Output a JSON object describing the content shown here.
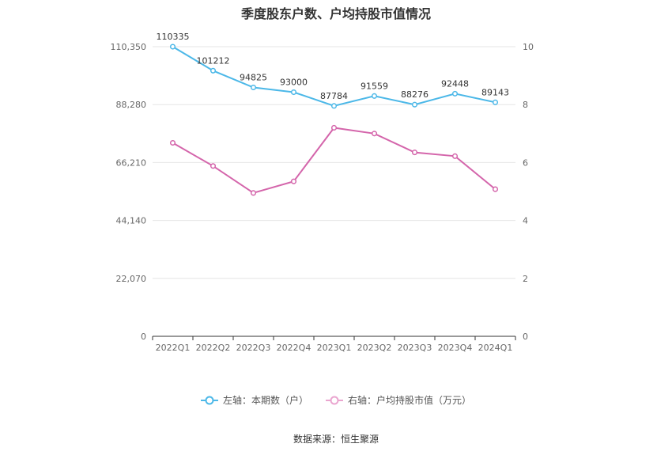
{
  "chart_data": {
    "type": "line",
    "title": "季度股东户数、户均持股市值情况",
    "categories": [
      "2022Q1",
      "2022Q2",
      "2022Q3",
      "2022Q4",
      "2023Q1",
      "2023Q2",
      "2023Q3",
      "2023Q4",
      "2024Q1"
    ],
    "left_axis": {
      "ticks": [
        "0",
        "22,070",
        "44,140",
        "66,210",
        "88,280",
        "110,350"
      ],
      "ylim": [
        0,
        110350
      ]
    },
    "right_axis": {
      "ticks": [
        "0",
        "2",
        "4",
        "6",
        "8",
        "10"
      ],
      "ylim": [
        0,
        10
      ]
    },
    "series": [
      {
        "name": "左轴：本期数（户）",
        "axis": "left",
        "color": "#4cb8e8",
        "values": [
          110335,
          101212,
          94825,
          93000,
          87784,
          91559,
          88276,
          92448,
          89143
        ],
        "labels": [
          "110335",
          "101212",
          "94825",
          "93000",
          "87784",
          "91559",
          "88276",
          "92448",
          "89143"
        ]
      },
      {
        "name": "右轴：户均持股市值（万元）",
        "axis": "right",
        "color": "#d465ab",
        "legend_color": "#eaa5cf",
        "values": [
          6.68,
          5.88,
          4.95,
          5.35,
          7.2,
          7.0,
          6.35,
          6.22,
          5.08
        ]
      }
    ],
    "grid": true,
    "legend_position": "bottom"
  },
  "source": "数据来源：恒生聚源"
}
